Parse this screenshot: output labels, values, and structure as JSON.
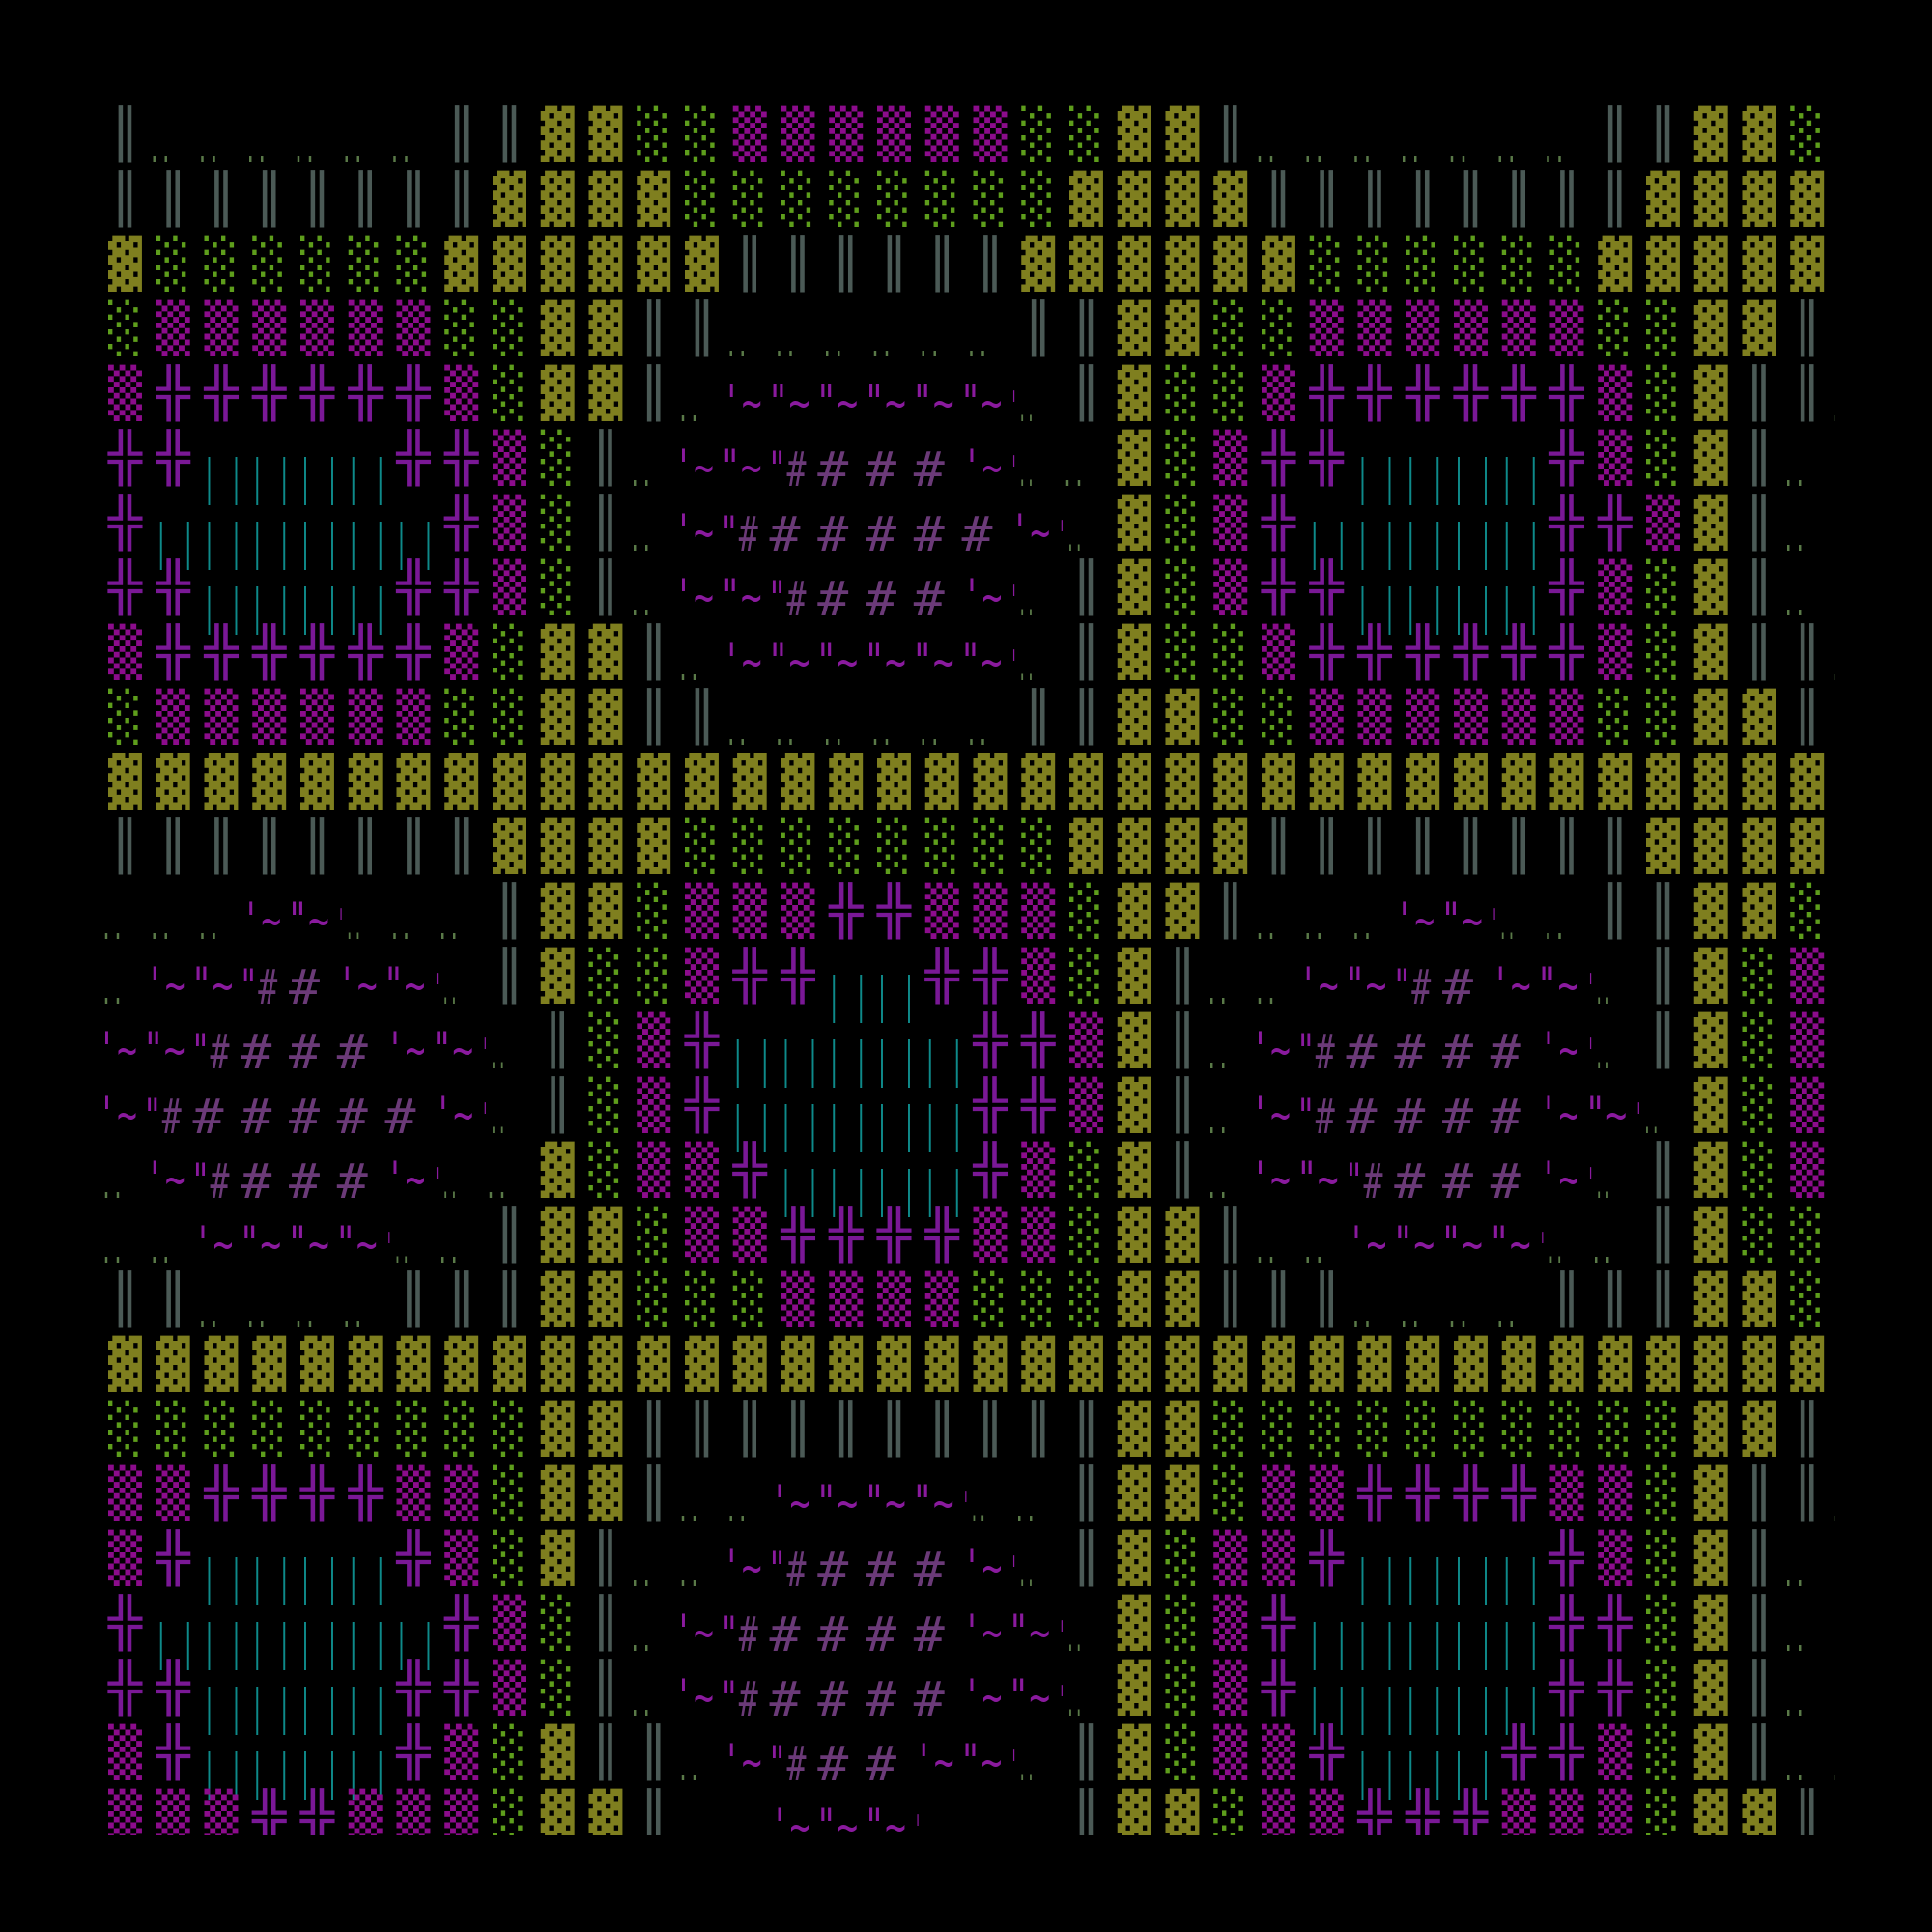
{
  "grid": {
    "columns": 37,
    "rows": [
      "GddddddGGOOggmmmmmmggOOGdddddddGGOOgm",
      "GGGGGGGGOOOOggggggggOOOOGGGGGGGGOOOOg",
      "OggggggOOOOOOGGGGGGOOOOOOggggggOOOOOO",
      "gmmmmmmggOOGGddddddGGOOggmmmmmmggOOG_",
      "m++++++mgOOGdabbbbbeGOggm++++++mgOGGd",
      "++TTTT++mgGdabHhhhaedOgm++TTTT+mgOGda",
      "+TTTTTT+mgGdaHhhhhhaeOgm+TTTTT++mOGda",
      "++TTTT++mgGdabHhhhaeGOgm++TTTT+mgOGda",
      "m++++++mgOOGdabbbbbeGOggm++++++mgOGGd",
      "gmmmmmmggOOGGddddddGGOOggmmmmmmggOOG_",
      "OOOOOOOOOOOOOOOOOOOOOOOOOOOOOOOOOOOOO",
      "GGGGGGGGOOOOggggggggOOOOGGGGGGGGOOOOg",
      "dddabeddGOOgmmm++mmmgOOGdddabedGGOOgm",
      "dabHhabeGOggm++TT++mgOGddabHhabeGOgmm",
      "abHhhhabeGgm+TTTTT++mOGdaHhhhhaeGOgm+",
      "aHhhhhhaeGgm+TTTTT++mOGdaHhhhhabeOgm+",
      "daHhhhaedOgmm+TTTT+mgOGdabHhhhaeGOgm+",
      "ddabbbedGOOgmm++++mmgOOGddabbbedGOggm",
      "GGddddGGGOOgggmmmmgggOOGGGddddGGGOOgg",
      "OOOOOOOOOOOOOOOOOOOOOOOOOOOOOOOOOOOOO",
      "gggggggggOOGGGGGGGGGGOOggggggggggOOG_",
      "mm++++mmgOOGddabbbedGOOgmm++++mmgOGGd",
      "m+TTTT+mgOGddaHhhhaeGOgmm+TTTT+mgOGda",
      "+TTTTTT+mgGdaHhhhhabeOgm+TTTTT++gOGda",
      "++TTTT++mgGdaHhhhhabeOgm+TTTTT++gOGda",
      "m+TTTT+mgOGGdaHhhabeGOgmm+TTT++mgOGdd",
      "mmm++mmmgOOG__abbe__GOOgmm+++mmmgOOG_"
    ],
    "glyphs": {
      "O": "▓",
      "g": "░",
      "m": "▒",
      "+": "╬",
      "T": "| |",
      "G": "║",
      "d": "..",
      "a": "'~",
      "b": "\"~",
      "H": "\"#",
      "h": "#",
      "e": "'..",
      "_": " "
    },
    "colors": {
      "background": "#000000",
      "olive": "#7f7f1f",
      "green": "#5e9e1c",
      "magenta": "#8c0c8c",
      "cross": "#7a1896",
      "teal": "#0e8a8a",
      "gray": "#4b5a56",
      "dots": "#5a7a48",
      "quote": "#8a1a9e",
      "hash": "#6b3a78"
    }
  }
}
